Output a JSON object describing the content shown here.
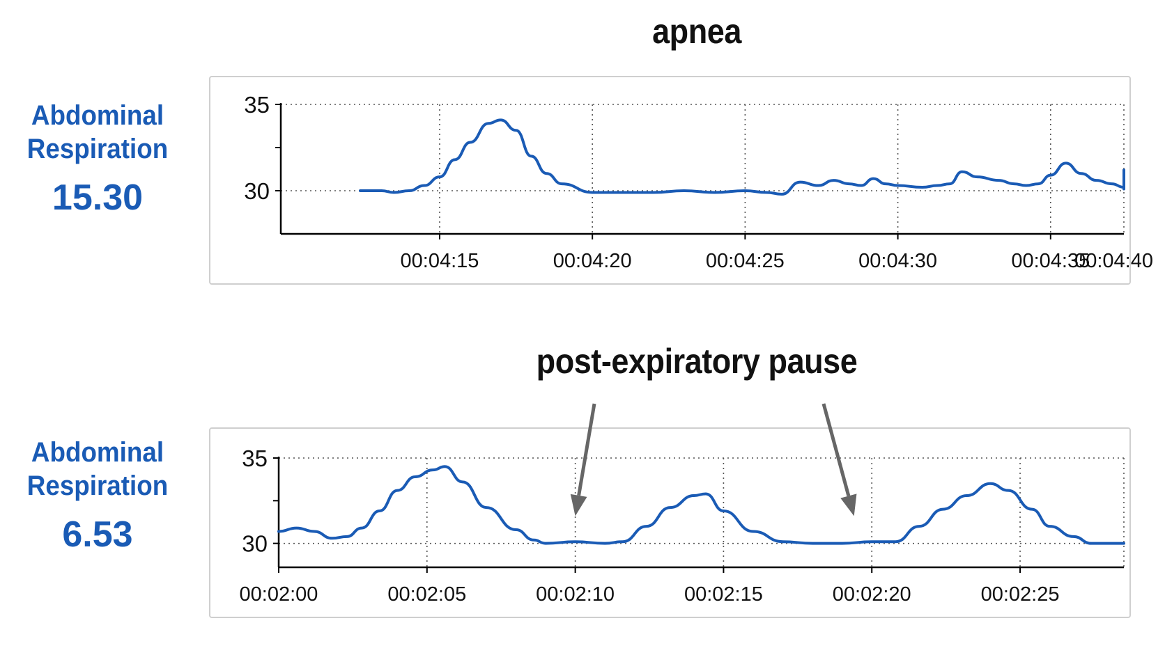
{
  "titles": [
    "apnea",
    "post-expiratory pause"
  ],
  "panels": [
    {
      "label_line1": "Abdominal",
      "label_line2": "Respiration",
      "value": "15.30"
    },
    {
      "label_line1": "Abdominal",
      "label_line2": "Respiration",
      "value": "6.53"
    }
  ],
  "colors": {
    "trace": "#1a5bb5",
    "label": "#1a5bb5",
    "grid": "#555555",
    "arrow": "#666666"
  },
  "chart_data": [
    {
      "type": "line",
      "title": "apnea",
      "xlabel": "",
      "ylabel": "",
      "ylim": [
        27.5,
        35
      ],
      "xlim": [
        -5.2,
        22.4
      ],
      "x_ticks": [
        0,
        5,
        10,
        15,
        20,
        25
      ],
      "x_tick_labels": [
        "00:04:15",
        "00:04:20",
        "00:04:25",
        "00:04:30",
        "00:04:35",
        "00:04:40"
      ],
      "y_ticks": [
        30,
        35
      ],
      "y_tick_labels": [
        "30",
        "35"
      ],
      "grid": true,
      "series": [
        {
          "x": [
            -2.6,
            -1.9,
            -1.5,
            -1.0,
            -0.5,
            0.0,
            0.5,
            1.0,
            1.6,
            2.0,
            2.5,
            3.0,
            3.5,
            4.0,
            5.0,
            6.0,
            7.0,
            8.0,
            9.0,
            10.0,
            10.7,
            11.2,
            11.8,
            12.4,
            12.9,
            13.4,
            13.8,
            14.2,
            14.6,
            15.0,
            15.8,
            16.3,
            16.7,
            17.1,
            17.6,
            18.3,
            18.8,
            19.2,
            19.6,
            20.0,
            20.5,
            21.0,
            21.5,
            22.0,
            22.5,
            23.0,
            23.5,
            24.0,
            24.5,
            25.0
          ],
          "y": [
            30.0,
            30.0,
            29.9,
            30.0,
            30.3,
            30.8,
            31.8,
            32.8,
            33.9,
            34.1,
            33.5,
            32.0,
            31.0,
            30.4,
            29.9,
            29.9,
            29.9,
            30.0,
            29.9,
            30.0,
            29.9,
            29.8,
            30.5,
            30.3,
            30.6,
            30.4,
            30.3,
            30.7,
            30.4,
            30.3,
            30.2,
            30.3,
            30.4,
            31.1,
            30.8,
            30.6,
            30.4,
            30.3,
            30.4,
            30.9,
            31.6,
            31.0,
            30.6,
            30.4,
            30.2,
            30.1,
            30.2,
            30.3,
            30.7,
            31.2
          ]
        }
      ]
    },
    {
      "type": "line",
      "title": "post-expiratory pause",
      "xlabel": "",
      "ylabel": "",
      "ylim": [
        28.6,
        35
      ],
      "xlim": [
        0,
        28.5
      ],
      "x_ticks": [
        0,
        5,
        10,
        15,
        20,
        25
      ],
      "x_tick_labels": [
        "00:02:00",
        "00:02:05",
        "00:02:10",
        "00:02:15",
        "00:02:20",
        "00:02:25"
      ],
      "y_ticks": [
        30,
        35
      ],
      "y_tick_labels": [
        "30",
        "35"
      ],
      "grid": true,
      "annotations": [
        {
          "text": "post-expiratory pause",
          "points_to_x": [
            10,
            19.4
          ]
        }
      ],
      "series": [
        {
          "x": [
            0.0,
            0.6,
            1.2,
            1.8,
            2.3,
            2.8,
            3.4,
            4.0,
            4.6,
            5.2,
            5.6,
            6.2,
            7.0,
            8.0,
            8.6,
            9.0,
            10.0,
            11.0,
            11.6,
            12.4,
            13.2,
            14.0,
            14.4,
            15.0,
            16.0,
            17.0,
            18.0,
            19.0,
            20.0,
            20.8,
            21.6,
            22.4,
            23.2,
            24.0,
            24.6,
            25.4,
            26.0,
            26.8,
            27.4,
            28.0,
            28.5
          ],
          "y": [
            30.7,
            30.9,
            30.7,
            30.3,
            30.4,
            30.9,
            31.9,
            33.1,
            33.9,
            34.3,
            34.5,
            33.6,
            32.1,
            30.8,
            30.2,
            30.0,
            30.1,
            30.0,
            30.1,
            31.0,
            32.1,
            32.8,
            32.9,
            31.9,
            30.7,
            30.1,
            30.0,
            30.0,
            30.1,
            30.1,
            31.0,
            32.0,
            32.8,
            33.5,
            33.1,
            32.0,
            31.0,
            30.4,
            30.0,
            30.0,
            30.0
          ]
        }
      ]
    }
  ]
}
